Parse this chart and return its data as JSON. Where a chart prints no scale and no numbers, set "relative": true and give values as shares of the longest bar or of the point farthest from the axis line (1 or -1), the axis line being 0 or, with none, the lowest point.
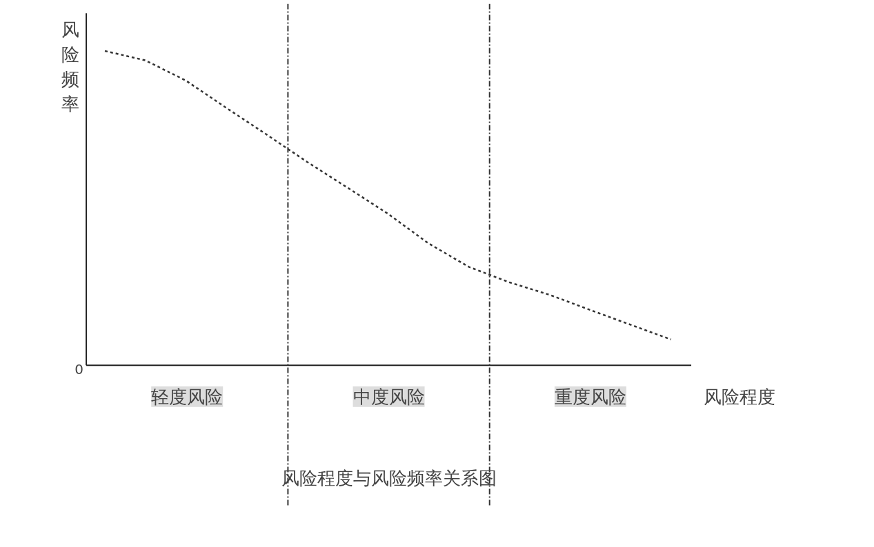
{
  "chart_data": {
    "type": "line",
    "title": "风险程度与风险频率关系图",
    "xlabel": "风险程度",
    "ylabel": "风险频率",
    "relative": true,
    "line_style": "dashed",
    "grid": false,
    "categories": [
      null,
      null,
      null,
      null,
      null,
      null,
      null,
      null,
      null,
      null,
      null,
      null,
      null,
      null,
      null
    ],
    "series": [
      {
        "color": "#333333",
        "values": [
          1,
          0.97,
          0.906,
          0.819,
          0.734,
          0.647,
          0.565,
          0.482,
          0.388,
          0.313,
          0.264,
          0.224,
          0.176,
          0.129,
          0.082
        ]
      }
    ],
    "annotations": [
      "0",
      "轻度风险",
      "中度风险",
      "重度风险"
    ]
  }
}
